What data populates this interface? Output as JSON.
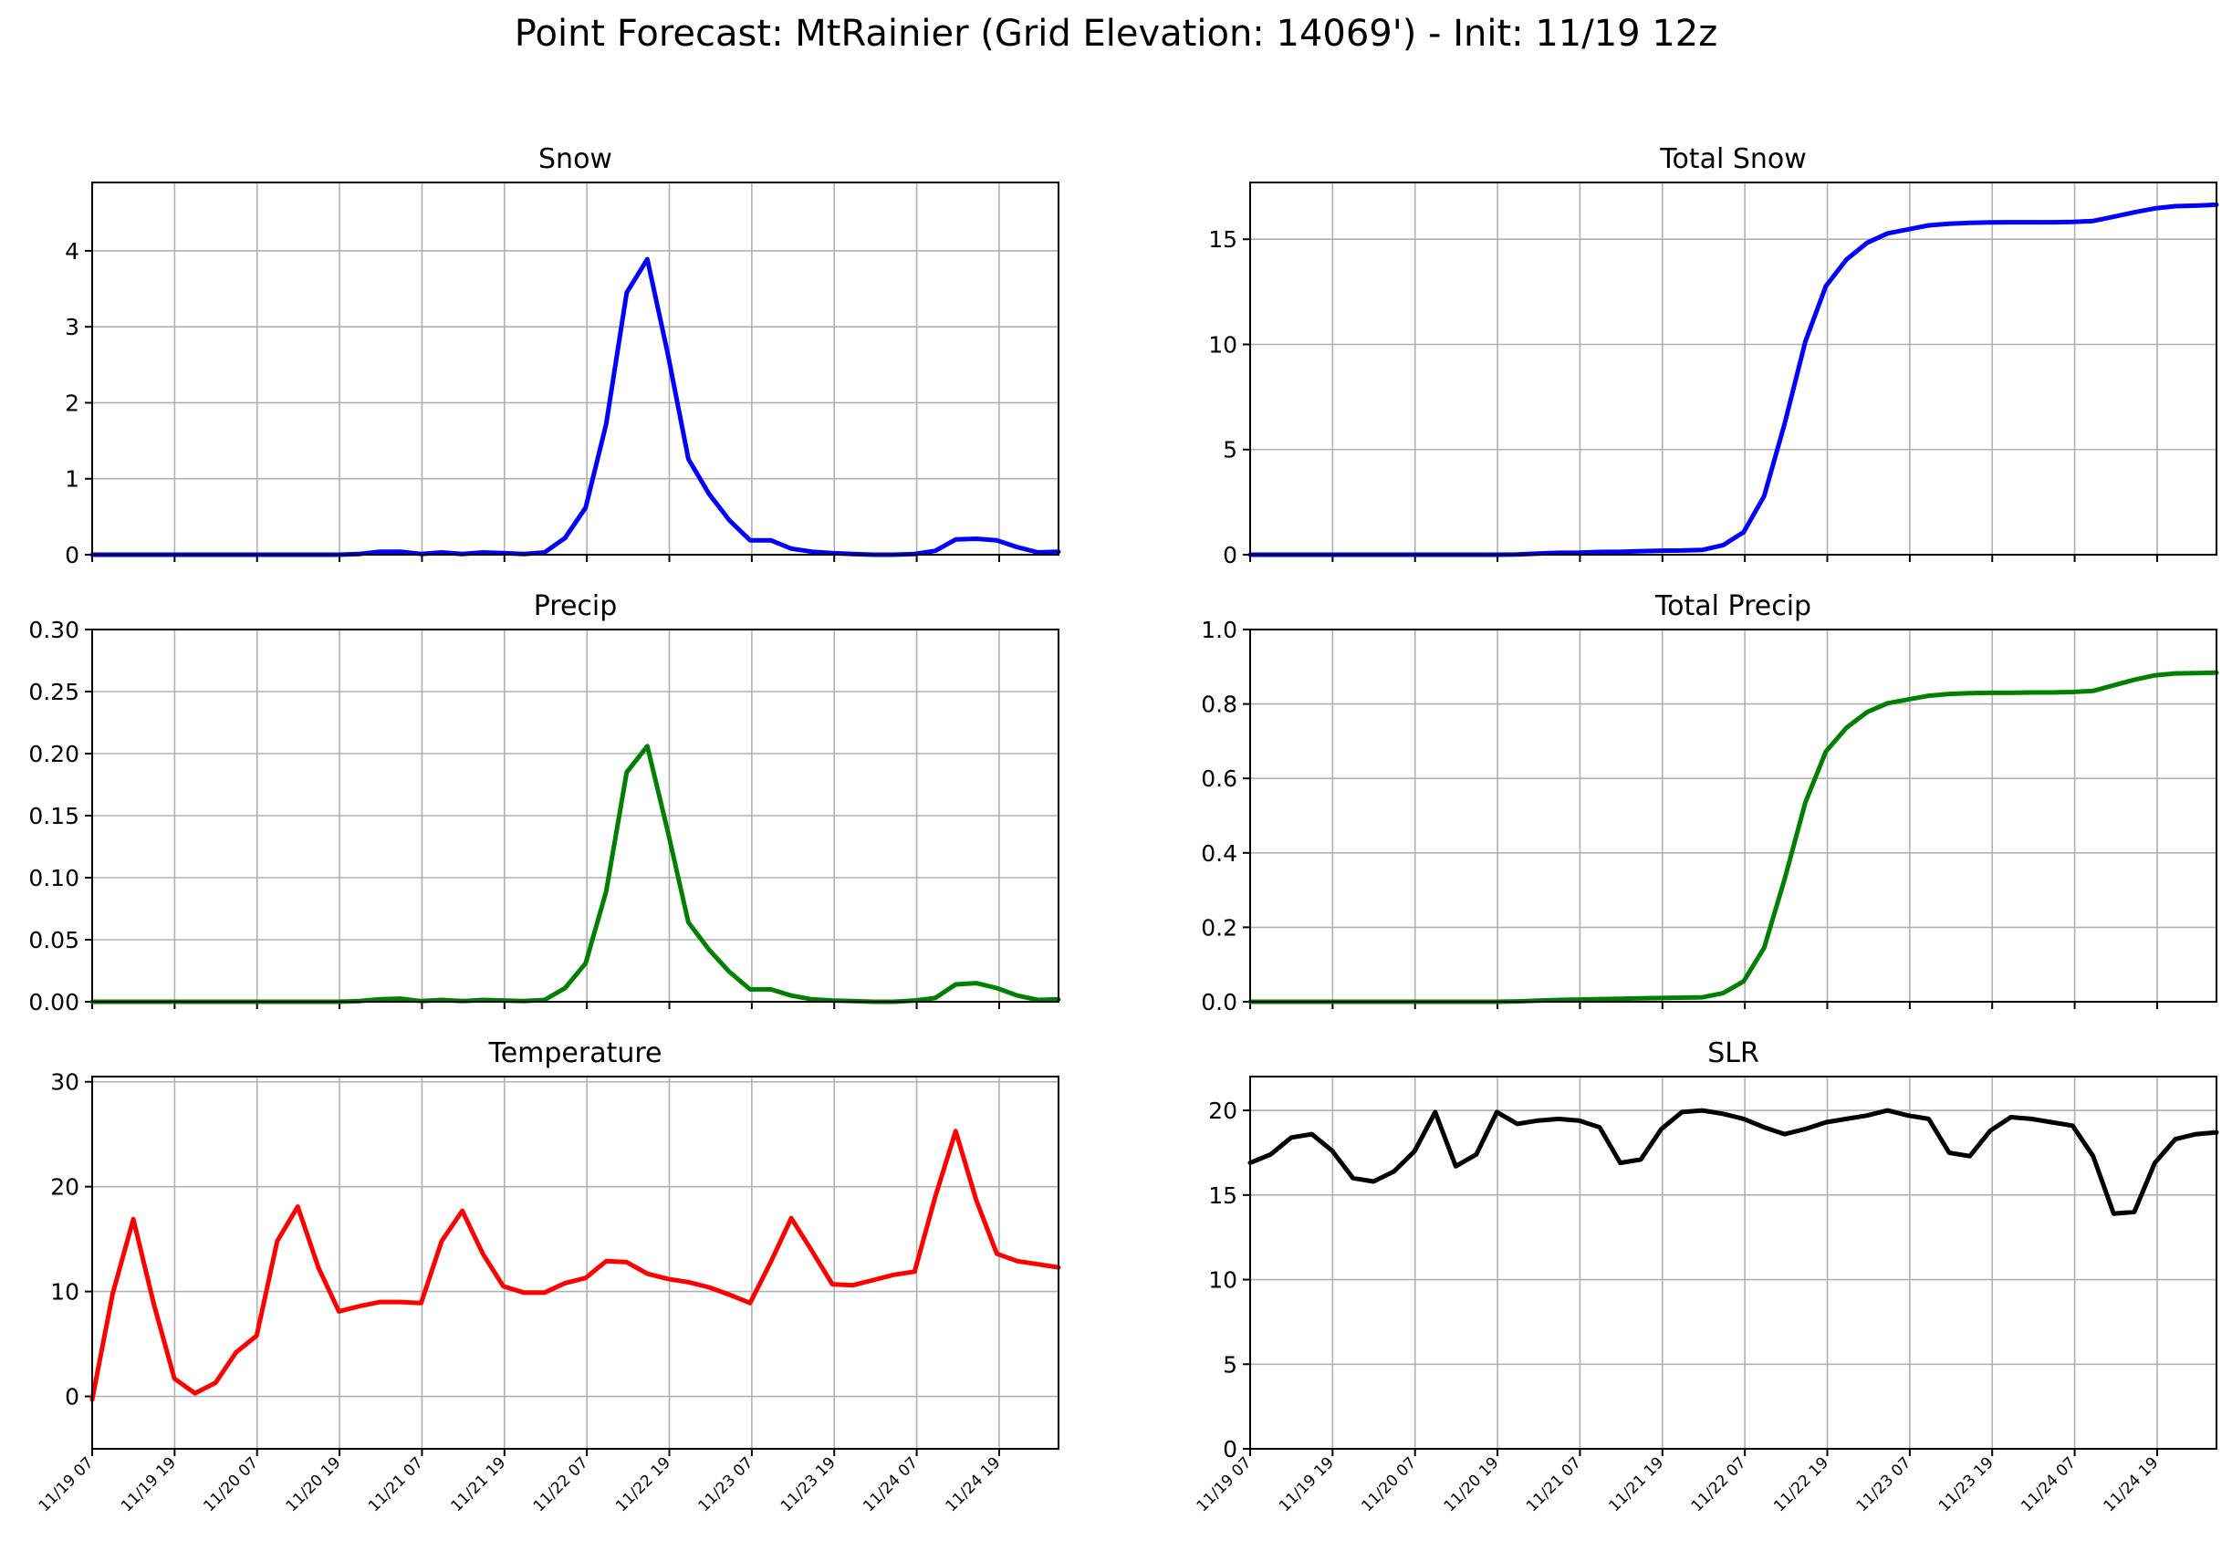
{
  "figure": {
    "title": "Point Forecast: MtRainier (Grid Elevation: 14069') - Init: 11/19 12z"
  },
  "chart_data": [
    {
      "type": "line",
      "title": "Snow",
      "color": "#0000ff",
      "ylim": [
        0,
        4.9
      ],
      "yticks": [
        "0",
        "1",
        "2",
        "3",
        "4"
      ],
      "xticks": [
        "11/19 07",
        "11/19 19",
        "11/20 07",
        "11/20 19",
        "11/21 07",
        "11/21 19",
        "11/22 07",
        "11/22 19",
        "11/23 07",
        "11/23 19",
        "11/24 07",
        "11/24 19"
      ],
      "x_tick_labels_shown": false,
      "grid": true,
      "values": [
        0,
        0,
        0,
        0,
        0,
        0,
        0,
        0,
        0,
        0,
        0,
        0,
        0,
        0.01,
        0.04,
        0.04,
        0.01,
        0.03,
        0.01,
        0.03,
        0.02,
        0.01,
        0.03,
        0.22,
        0.62,
        1.72,
        3.45,
        3.89,
        2.64,
        1.26,
        0.8,
        0.45,
        0.19,
        0.19,
        0.08,
        0.04,
        0.02,
        0.01,
        0,
        0,
        0.01,
        0.05,
        0.2,
        0.21,
        0.19,
        0.1,
        0.03,
        0.04
      ]
    },
    {
      "type": "line",
      "title": "Total Snow",
      "color": "#0000ff",
      "ylim": [
        0,
        17.7
      ],
      "yticks": [
        "0",
        "5",
        "10",
        "15"
      ],
      "xticks": [
        "11/19 07",
        "11/19 19",
        "11/20 07",
        "11/20 19",
        "11/21 07",
        "11/21 19",
        "11/22 07",
        "11/22 19",
        "11/23 07",
        "11/23 19",
        "11/24 07",
        "11/24 19"
      ],
      "x_tick_labels_shown": false,
      "grid": true,
      "values": [
        0,
        0,
        0,
        0,
        0,
        0,
        0,
        0,
        0,
        0,
        0,
        0,
        0,
        0.01,
        0.05,
        0.09,
        0.1,
        0.13,
        0.14,
        0.17,
        0.19,
        0.2,
        0.23,
        0.45,
        1.07,
        2.79,
        6.24,
        10.13,
        12.77,
        14.03,
        14.83,
        15.28,
        15.47,
        15.66,
        15.74,
        15.78,
        15.8,
        15.81,
        15.81,
        15.81,
        15.82,
        15.87,
        16.07,
        16.28,
        16.47,
        16.57,
        16.6,
        16.64
      ]
    },
    {
      "type": "line",
      "title": "Precip",
      "color": "#008000",
      "ylim": [
        0,
        0.3
      ],
      "yticks": [
        "0.00",
        "0.05",
        "0.10",
        "0.15",
        "0.20",
        "0.25",
        "0.30"
      ],
      "xticks": [
        "11/19 07",
        "11/19 19",
        "11/20 07",
        "11/20 19",
        "11/21 07",
        "11/21 19",
        "11/22 07",
        "11/22 19",
        "11/23 07",
        "11/23 19",
        "11/24 07",
        "11/24 19"
      ],
      "x_tick_labels_shown": false,
      "grid": true,
      "values": [
        0,
        0,
        0,
        0,
        0,
        0,
        0,
        0,
        0,
        0,
        0,
        0,
        0,
        0.0005,
        0.002,
        0.0025,
        0.0005,
        0.0015,
        0.0005,
        0.0015,
        0.001,
        0.0005,
        0.0015,
        0.011,
        0.031,
        0.089,
        0.185,
        0.206,
        0.137,
        0.064,
        0.042,
        0.024,
        0.01,
        0.01,
        0.005,
        0.002,
        0.001,
        0.0005,
        0,
        0,
        0.001,
        0.003,
        0.014,
        0.015,
        0.011,
        0.005,
        0.0015,
        0.002
      ]
    },
    {
      "type": "line",
      "title": "Total Precip",
      "color": "#008000",
      "ylim": [
        0,
        1.0
      ],
      "yticks": [
        "0.0",
        "0.2",
        "0.4",
        "0.6",
        "0.8",
        "1.0"
      ],
      "xticks": [
        "11/19 07",
        "11/19 19",
        "11/20 07",
        "11/20 19",
        "11/21 07",
        "11/21 19",
        "11/22 07",
        "11/22 19",
        "11/23 07",
        "11/23 19",
        "11/24 07",
        "11/24 19"
      ],
      "x_tick_labels_shown": false,
      "grid": true,
      "values": [
        0,
        0,
        0,
        0,
        0,
        0,
        0,
        0,
        0,
        0,
        0,
        0,
        0,
        0.001,
        0.003,
        0.005,
        0.006,
        0.007,
        0.008,
        0.009,
        0.01,
        0.011,
        0.012,
        0.023,
        0.055,
        0.145,
        0.33,
        0.535,
        0.672,
        0.736,
        0.778,
        0.802,
        0.812,
        0.822,
        0.827,
        0.829,
        0.83,
        0.83,
        0.831,
        0.831,
        0.832,
        0.835,
        0.85,
        0.865,
        0.877,
        0.882,
        0.883,
        0.884
      ]
    },
    {
      "type": "line",
      "title": "Temperature",
      "color": "#ff0000",
      "ylim": [
        -5,
        30.5
      ],
      "yticks": [
        "0",
        "10",
        "20",
        "30"
      ],
      "yticks_values": [
        0,
        10,
        20,
        30
      ],
      "xticks": [
        "11/19 07",
        "11/19 19",
        "11/20 07",
        "11/20 19",
        "11/21 07",
        "11/21 19",
        "11/22 07",
        "11/22 19",
        "11/23 07",
        "11/23 19",
        "11/24 07",
        "11/24 19"
      ],
      "x_tick_labels_shown": true,
      "grid": true,
      "values": [
        -0.3,
        9.8,
        16.9,
        8.8,
        1.7,
        0.3,
        1.3,
        4.2,
        5.8,
        14.8,
        18.1,
        12.3,
        8.1,
        8.6,
        9.0,
        9.0,
        8.9,
        14.8,
        17.7,
        13.6,
        10.5,
        9.9,
        9.9,
        10.8,
        11.3,
        12.9,
        12.8,
        11.7,
        11.2,
        10.9,
        10.4,
        9.7,
        8.9,
        12.8,
        17.0,
        13.9,
        10.7,
        10.6,
        11.1,
        11.6,
        11.9,
        19.0,
        25.3,
        18.7,
        13.6,
        12.9,
        12.6,
        12.3
      ]
    },
    {
      "type": "line",
      "title": "SLR",
      "color": "#000000",
      "ylim": [
        0,
        22
      ],
      "yticks": [
        "0",
        "5",
        "10",
        "15",
        "20"
      ],
      "xticks": [
        "11/19 07",
        "11/19 19",
        "11/20 07",
        "11/20 19",
        "11/21 07",
        "11/21 19",
        "11/22 07",
        "11/22 19",
        "11/23 07",
        "11/23 19",
        "11/24 07",
        "11/24 19"
      ],
      "x_tick_labels_shown": true,
      "grid": true,
      "values": [
        16.9,
        17.4,
        18.4,
        18.6,
        17.6,
        16.0,
        15.8,
        16.4,
        17.6,
        19.9,
        16.7,
        17.4,
        19.9,
        19.2,
        19.4,
        19.5,
        19.4,
        19.0,
        16.9,
        17.1,
        18.9,
        19.9,
        20.0,
        19.8,
        19.5,
        19.0,
        18.6,
        18.9,
        19.3,
        19.5,
        19.7,
        20.0,
        19.7,
        19.5,
        17.5,
        17.3,
        18.8,
        19.6,
        19.5,
        19.3,
        19.1,
        17.3,
        13.9,
        14.0,
        16.9,
        18.3,
        18.6,
        18.7
      ]
    }
  ]
}
